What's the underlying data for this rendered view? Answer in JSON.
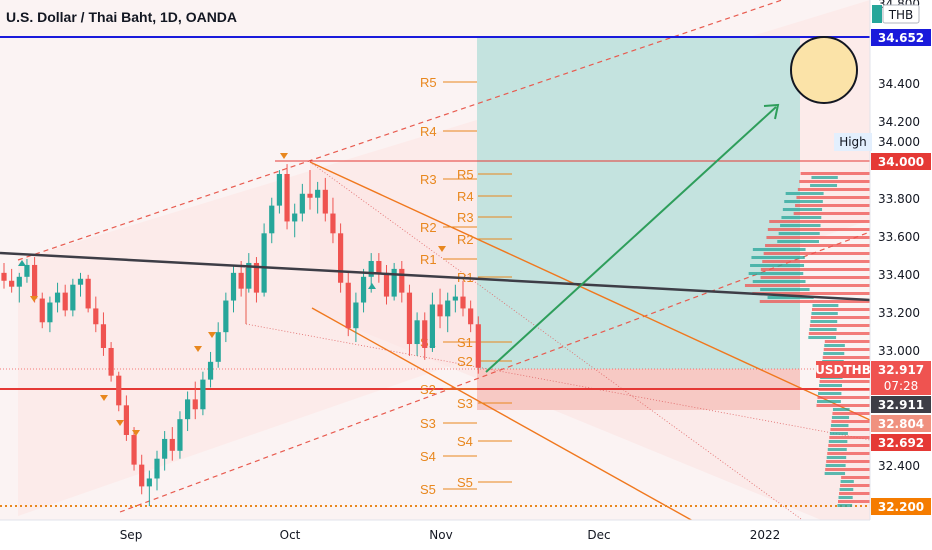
{
  "header": {
    "title": "U.S. Dollar / Thai Baht, 1D, OANDA",
    "currency": "THB"
  },
  "colors": {
    "up": "#26a69a",
    "down": "#ef5350",
    "pivot": "#e8871e",
    "blue_line": "#1a1adb",
    "red_line": "#e53935",
    "arrow": "#2e9e5b",
    "trend": "#3d3d46"
  },
  "price_tags": {
    "top": "34.652",
    "high_label": "High",
    "high": "34.000",
    "symbol": "USDTHB",
    "last": "32.917",
    "countdown": "07:28",
    "t1": "32.911",
    "t2": "32.804",
    "t3": "32.692",
    "bottom": "32.200"
  },
  "chart_data": {
    "type": "candlestick",
    "x_ticks": [
      "Sep",
      "Oct",
      "Nov",
      "Dec",
      "2022"
    ],
    "y_ticks": [
      "34.800",
      "34.400",
      "34.200",
      "34.000",
      "33.800",
      "33.600",
      "33.400",
      "33.200",
      "33.000",
      "32.400"
    ],
    "ylim": [
      32.15,
      34.78
    ],
    "pivots_left": [
      {
        "label": "R5",
        "value": 34.55
      },
      {
        "label": "R4",
        "value": 34.25
      },
      {
        "label": "R3",
        "value": 33.95
      },
      {
        "label": "R2",
        "value": 33.65
      },
      {
        "label": "R1",
        "value": 33.47
      },
      {
        "label": "S1",
        "value": 33.07
      },
      {
        "label": "S2",
        "value": 32.8
      },
      {
        "label": "S3",
        "value": 32.57
      },
      {
        "label": "S4",
        "value": 32.39
      },
      {
        "label": "S5",
        "value": 32.23
      }
    ],
    "pivots_right": [
      {
        "label": "R5",
        "value": 33.96
      },
      {
        "label": "R4",
        "value": 33.85
      },
      {
        "label": "R3",
        "value": 33.74
      },
      {
        "label": "R2",
        "value": 33.61
      },
      {
        "label": "R1",
        "value": 33.43
      },
      {
        "label": "S1",
        "value": 33.07
      },
      {
        "label": "S2",
        "value": 32.96
      },
      {
        "label": "S3",
        "value": 32.84
      },
      {
        "label": "S4",
        "value": 32.69
      },
      {
        "label": "S5",
        "value": 32.51
      }
    ],
    "candles": [
      [
        33.4,
        33.45,
        33.32,
        33.36
      ],
      [
        33.36,
        33.42,
        33.3,
        33.33
      ],
      [
        33.33,
        33.4,
        33.25,
        33.38
      ],
      [
        33.38,
        33.47,
        33.35,
        33.44
      ],
      [
        33.44,
        33.48,
        33.25,
        33.27
      ],
      [
        33.27,
        33.3,
        33.12,
        33.15
      ],
      [
        33.15,
        33.28,
        33.1,
        33.25
      ],
      [
        33.25,
        33.35,
        33.2,
        33.3
      ],
      [
        33.3,
        33.34,
        33.18,
        33.21
      ],
      [
        33.21,
        33.37,
        33.18,
        33.34
      ],
      [
        33.34,
        33.4,
        33.28,
        33.37
      ],
      [
        33.37,
        33.39,
        33.2,
        33.22
      ],
      [
        33.22,
        33.28,
        33.1,
        33.14
      ],
      [
        33.14,
        33.2,
        32.98,
        33.02
      ],
      [
        33.02,
        33.05,
        32.85,
        32.88
      ],
      [
        32.88,
        32.9,
        32.7,
        32.73
      ],
      [
        32.73,
        32.78,
        32.55,
        32.58
      ],
      [
        32.58,
        32.62,
        32.4,
        32.43
      ],
      [
        32.43,
        32.48,
        32.28,
        32.32
      ],
      [
        32.32,
        32.4,
        32.22,
        32.36
      ],
      [
        32.36,
        32.5,
        32.3,
        32.46
      ],
      [
        32.46,
        32.6,
        32.4,
        32.56
      ],
      [
        32.56,
        32.62,
        32.45,
        32.5
      ],
      [
        32.5,
        32.7,
        32.46,
        32.66
      ],
      [
        32.66,
        32.8,
        32.6,
        32.76
      ],
      [
        32.76,
        32.85,
        32.66,
        32.71
      ],
      [
        32.71,
        32.9,
        32.68,
        32.86
      ],
      [
        32.86,
        33.0,
        32.82,
        32.95
      ],
      [
        32.95,
        33.15,
        32.92,
        33.1
      ],
      [
        33.1,
        33.3,
        33.05,
        33.26
      ],
      [
        33.26,
        33.44,
        33.2,
        33.4
      ],
      [
        33.4,
        33.46,
        33.28,
        33.32
      ],
      [
        33.32,
        33.5,
        33.3,
        33.45
      ],
      [
        33.45,
        33.48,
        33.25,
        33.3
      ],
      [
        33.3,
        33.65,
        33.28,
        33.6
      ],
      [
        33.6,
        33.78,
        33.55,
        33.74
      ],
      [
        33.74,
        33.92,
        33.7,
        33.9
      ],
      [
        33.9,
        33.95,
        33.62,
        33.66
      ],
      [
        33.66,
        33.75,
        33.58,
        33.7
      ],
      [
        33.7,
        33.85,
        33.66,
        33.8
      ],
      [
        33.8,
        33.92,
        33.72,
        33.78
      ],
      [
        33.78,
        33.86,
        33.7,
        33.82
      ],
      [
        33.82,
        33.88,
        33.66,
        33.7
      ],
      [
        33.7,
        33.78,
        33.55,
        33.6
      ],
      [
        33.6,
        33.65,
        33.3,
        33.35
      ],
      [
        33.35,
        33.4,
        33.08,
        33.12
      ],
      [
        33.12,
        33.3,
        33.05,
        33.25
      ],
      [
        33.25,
        33.42,
        33.2,
        33.38
      ],
      [
        33.38,
        33.5,
        33.3,
        33.46
      ],
      [
        33.46,
        33.5,
        33.35,
        33.4
      ],
      [
        33.4,
        33.44,
        33.24,
        33.28
      ],
      [
        33.28,
        33.45,
        33.26,
        33.42
      ],
      [
        33.42,
        33.46,
        33.25,
        33.3
      ],
      [
        33.3,
        33.34,
        32.98,
        33.04
      ],
      [
        33.04,
        33.2,
        32.98,
        33.16
      ],
      [
        33.16,
        33.2,
        32.96,
        33.02
      ],
      [
        33.02,
        33.3,
        33.0,
        33.24
      ],
      [
        33.24,
        33.32,
        33.12,
        33.18
      ],
      [
        33.18,
        33.3,
        33.1,
        33.26
      ],
      [
        33.26,
        33.34,
        33.2,
        33.28
      ],
      [
        33.28,
        33.36,
        33.18,
        33.22
      ],
      [
        33.22,
        33.26,
        33.1,
        33.14
      ],
      [
        33.14,
        33.18,
        32.89,
        32.92
      ]
    ]
  }
}
